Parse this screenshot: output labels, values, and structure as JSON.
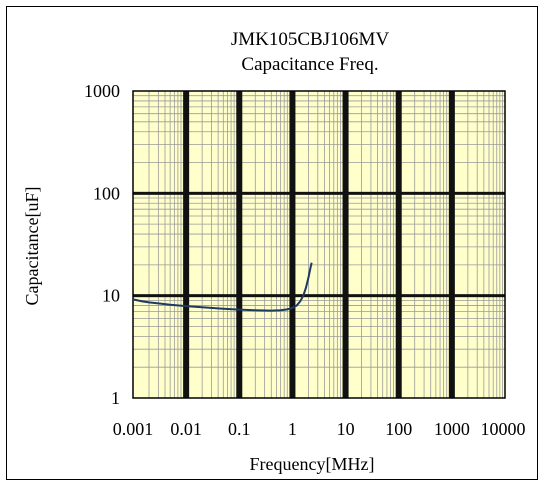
{
  "chart_data": {
    "type": "line",
    "title": "JMK105CBJ106MV",
    "subtitle": "Capacitance Freq.",
    "xlabel": "Frequency[MHz]",
    "ylabel": "Capacitance[uF]",
    "x_scale": "log",
    "y_scale": "log",
    "xlim": [
      0.001,
      10000
    ],
    "ylim": [
      1,
      1000
    ],
    "x_ticks": [
      "0.001",
      "0.01",
      "0.1",
      "1",
      "10",
      "100",
      "1000",
      "10000"
    ],
    "y_ticks": [
      "1",
      "10",
      "100",
      "1000"
    ],
    "grid": true,
    "plot_background": "#ffffcc",
    "series": [
      {
        "color": "#1f3a5f",
        "points": [
          [
            0.001,
            9.2
          ],
          [
            0.0015,
            8.8
          ],
          [
            0.002,
            8.6
          ],
          [
            0.003,
            8.4
          ],
          [
            0.005,
            8.15
          ],
          [
            0.01,
            7.9
          ],
          [
            0.02,
            7.7
          ],
          [
            0.05,
            7.45
          ],
          [
            0.1,
            7.3
          ],
          [
            0.2,
            7.2
          ],
          [
            0.4,
            7.15
          ],
          [
            0.6,
            7.2
          ],
          [
            0.8,
            7.35
          ],
          [
            1.0,
            7.6
          ],
          [
            1.2,
            8.0
          ],
          [
            1.4,
            8.8
          ],
          [
            1.6,
            10.0
          ],
          [
            1.8,
            12.0
          ],
          [
            2.0,
            15.0
          ],
          [
            2.2,
            19.0
          ],
          [
            2.3,
            21.0
          ]
        ]
      }
    ]
  }
}
